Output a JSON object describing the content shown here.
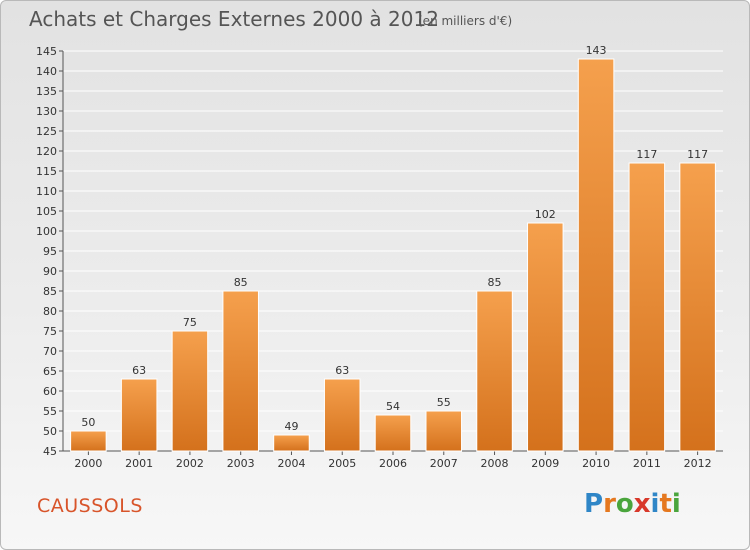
{
  "header": {
    "title": "Achats et Charges Externes 2000 à 2012",
    "unit": "(en milliers d'€)"
  },
  "footer": {
    "commune": "CAUSSOLS",
    "logo_letters": [
      "P",
      "r",
      "o",
      "x",
      "i",
      "t",
      "i"
    ],
    "logo_colors": [
      "#2f86c7",
      "#e5781f",
      "#4aa53c",
      "#d8382a",
      "#2f86c7",
      "#e5781f",
      "#4aa53c"
    ]
  },
  "colors": {
    "bar_top": "#f5a04d",
    "bar_bottom": "#d4711c",
    "grid": "#ffffff"
  },
  "chart_data": {
    "type": "bar",
    "title": "Achats et Charges Externes 2000 à 2012",
    "subtitle": "(en milliers d'€)",
    "xlabel": "",
    "ylabel": "",
    "categories": [
      "2000",
      "2001",
      "2002",
      "2003",
      "2004",
      "2005",
      "2006",
      "2007",
      "2008",
      "2009",
      "2010",
      "2011",
      "2012"
    ],
    "values": [
      50,
      63,
      75,
      85,
      49,
      63,
      54,
      55,
      85,
      102,
      143,
      117,
      117
    ],
    "ylim": [
      45,
      145
    ],
    "yticks": [
      45,
      50,
      55,
      60,
      65,
      70,
      75,
      80,
      85,
      90,
      95,
      100,
      105,
      110,
      115,
      120,
      125,
      130,
      135,
      140,
      145
    ],
    "grid": true,
    "data_labels": true
  }
}
